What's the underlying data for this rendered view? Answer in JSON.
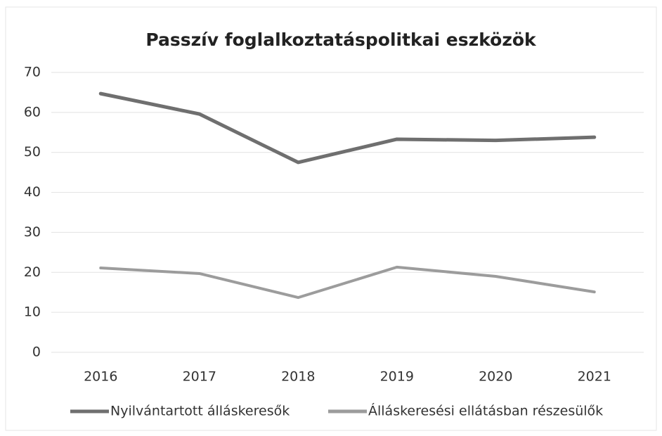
{
  "chart_data": {
    "type": "line",
    "title": "Passzív foglalkoztatáspolitkai eszközök",
    "categories": [
      "2016",
      "2017",
      "2018",
      "2019",
      "2020",
      "2021"
    ],
    "series": [
      {
        "name": "Nyilvántartott álláskeresők",
        "color": "#6f6f6f",
        "values": [
          64.7,
          59.6,
          47.5,
          53.3,
          53,
          53.8
        ]
      },
      {
        "name": "Álláskeresési ellátásban részesülők",
        "color": "#9c9c9c",
        "values": [
          21.1,
          19.7,
          13.7,
          21.3,
          19,
          15.1
        ]
      }
    ],
    "ylim": [
      0,
      70
    ],
    "yticks": [
      0,
      10,
      20,
      30,
      40,
      50,
      60,
      70
    ],
    "grid": true,
    "legend": "bottom"
  }
}
